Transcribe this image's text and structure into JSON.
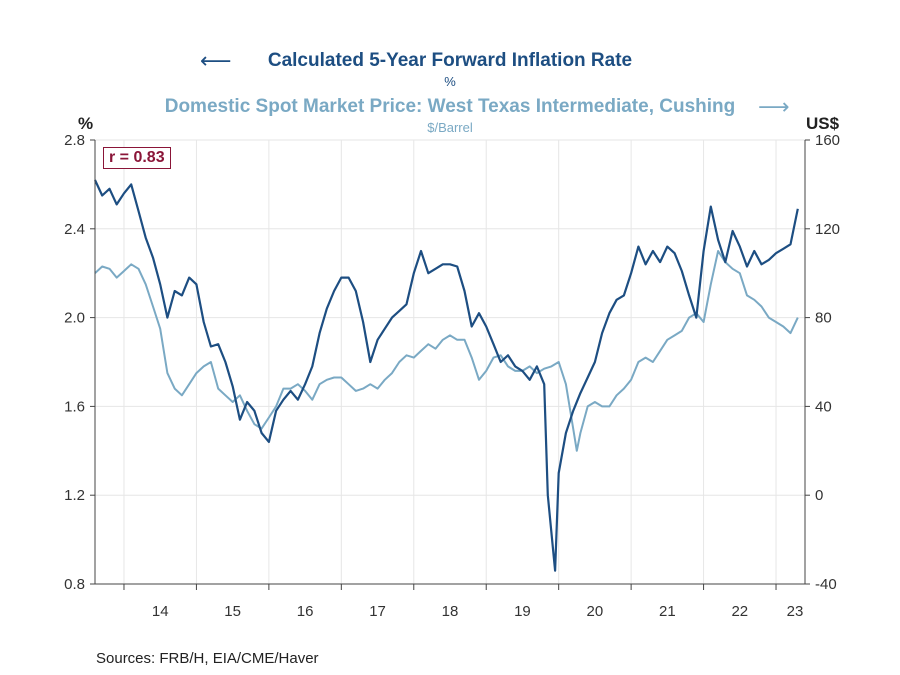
{
  "titles": {
    "series1_title": "Calculated 5-Year Forward Inflation Rate",
    "series1_unit": "%",
    "series2_title": "Domestic Spot Market Price: West Texas Intermediate, Cushing",
    "series2_unit": "$/Barrel",
    "arrow_left": "⟵",
    "arrow_right": "⟶"
  },
  "axis_labels": {
    "left": "%",
    "right": "US$"
  },
  "annotation": "r = 0.83",
  "sources": "Sources:  FRB/H, EIA/CME/Haver",
  "colors": {
    "series1": "#1d4e82",
    "series2": "#7aa9c4",
    "annotation": "#8a1538",
    "grid": "#e6e6e6"
  },
  "chart_data": {
    "type": "line",
    "x_tick_labels": [
      "14",
      "15",
      "16",
      "17",
      "18",
      "19",
      "20",
      "21",
      "22",
      "23"
    ],
    "x_ticks": [
      2014.0,
      2015.0,
      2016.0,
      2017.0,
      2018.0,
      2019.0,
      2020.0,
      2021.0,
      2022.0,
      2023.0
    ],
    "xlim": [
      2013.6,
      2023.4
    ],
    "y_left": {
      "label": "%",
      "lim": [
        0.8,
        2.8
      ],
      "ticks": [
        0.8,
        1.2,
        1.6,
        2.0,
        2.4,
        2.8
      ],
      "tick_labels": [
        "0.8",
        "1.2",
        "1.6",
        "2.0",
        "2.4",
        "2.8"
      ]
    },
    "y_right": {
      "label": "US$",
      "lim": [
        -40,
        160
      ],
      "ticks": [
        -40,
        0,
        40,
        80,
        120,
        160
      ],
      "tick_labels": [
        "-40",
        "0",
        "40",
        "80",
        "120",
        "160"
      ]
    },
    "series": [
      {
        "name": "Calculated 5-Year Forward Inflation Rate",
        "unit": "%",
        "axis": "left",
        "x": [
          2013.6,
          2013.7,
          2013.8,
          2013.9,
          2014.0,
          2014.1,
          2014.2,
          2014.3,
          2014.4,
          2014.5,
          2014.6,
          2014.7,
          2014.8,
          2014.9,
          2015.0,
          2015.1,
          2015.2,
          2015.3,
          2015.4,
          2015.5,
          2015.6,
          2015.7,
          2015.8,
          2015.9,
          2016.0,
          2016.1,
          2016.2,
          2016.3,
          2016.4,
          2016.5,
          2016.6,
          2016.7,
          2016.8,
          2016.9,
          2017.0,
          2017.1,
          2017.2,
          2017.3,
          2017.4,
          2017.5,
          2017.6,
          2017.7,
          2017.8,
          2017.9,
          2018.0,
          2018.1,
          2018.2,
          2018.3,
          2018.4,
          2018.5,
          2018.6,
          2018.7,
          2018.8,
          2018.9,
          2019.0,
          2019.1,
          2019.2,
          2019.3,
          2019.4,
          2019.5,
          2019.6,
          2019.7,
          2019.8,
          2019.85,
          2019.95,
          2020.0,
          2020.1,
          2020.2,
          2020.3,
          2020.4,
          2020.5,
          2020.6,
          2020.7,
          2020.8,
          2020.9,
          2021.0,
          2021.1,
          2021.2,
          2021.3,
          2021.4,
          2021.5,
          2021.6,
          2021.7,
          2021.8,
          2021.9,
          2022.0,
          2022.1,
          2022.2,
          2022.3,
          2022.4,
          2022.5,
          2022.6,
          2022.7,
          2022.8,
          2022.9,
          2023.0,
          2023.1,
          2023.2,
          2023.3
        ],
        "y": [
          2.62,
          2.55,
          2.58,
          2.51,
          2.56,
          2.6,
          2.48,
          2.36,
          2.27,
          2.15,
          2.0,
          2.12,
          2.1,
          2.18,
          2.15,
          1.98,
          1.87,
          1.88,
          1.8,
          1.69,
          1.54,
          1.62,
          1.58,
          1.48,
          1.44,
          1.58,
          1.63,
          1.67,
          1.63,
          1.7,
          1.78,
          1.93,
          2.04,
          2.12,
          2.18,
          2.18,
          2.12,
          1.98,
          1.8,
          1.9,
          1.95,
          2.0,
          2.03,
          2.06,
          2.2,
          2.3,
          2.2,
          2.22,
          2.24,
          2.24,
          2.23,
          2.12,
          1.96,
          2.02,
          1.96,
          1.88,
          1.8,
          1.83,
          1.78,
          1.76,
          1.72,
          1.78,
          1.7,
          1.2,
          0.86,
          1.3,
          1.48,
          1.58,
          1.66,
          1.73,
          1.8,
          1.93,
          2.02,
          2.08,
          2.1,
          2.2,
          2.32,
          2.24,
          2.3,
          2.25,
          2.32,
          2.29,
          2.21,
          2.1,
          2.0,
          2.3,
          2.5,
          2.35,
          2.25,
          2.39,
          2.32,
          2.23,
          2.3,
          2.24,
          2.26,
          2.29,
          2.31,
          2.33,
          2.49
        ]
      },
      {
        "name": "Domestic Spot Market Price: West Texas Intermediate, Cushing",
        "unit": "$/Barrel",
        "axis": "right",
        "x": [
          2013.6,
          2013.7,
          2013.8,
          2013.9,
          2014.0,
          2014.1,
          2014.2,
          2014.3,
          2014.4,
          2014.5,
          2014.6,
          2014.7,
          2014.8,
          2014.9,
          2015.0,
          2015.1,
          2015.2,
          2015.3,
          2015.4,
          2015.5,
          2015.6,
          2015.7,
          2015.8,
          2015.9,
          2016.0,
          2016.1,
          2016.2,
          2016.3,
          2016.4,
          2016.5,
          2016.6,
          2016.7,
          2016.8,
          2016.9,
          2017.0,
          2017.1,
          2017.2,
          2017.3,
          2017.4,
          2017.5,
          2017.6,
          2017.7,
          2017.8,
          2017.9,
          2018.0,
          2018.1,
          2018.2,
          2018.3,
          2018.4,
          2018.5,
          2018.6,
          2018.7,
          2018.8,
          2018.9,
          2019.0,
          2019.1,
          2019.2,
          2019.3,
          2019.4,
          2019.5,
          2019.6,
          2019.7,
          2019.8,
          2019.9,
          2020.0,
          2020.1,
          2020.2,
          2020.25,
          2020.3,
          2020.4,
          2020.5,
          2020.6,
          2020.7,
          2020.8,
          2020.9,
          2021.0,
          2021.1,
          2021.2,
          2021.3,
          2021.4,
          2021.5,
          2021.6,
          2021.7,
          2021.8,
          2021.9,
          2022.0,
          2022.1,
          2022.2,
          2022.3,
          2022.4,
          2022.5,
          2022.6,
          2022.7,
          2022.8,
          2022.9,
          2023.0,
          2023.1,
          2023.2,
          2023.3
        ],
        "y": [
          100,
          103,
          102,
          98,
          101,
          104,
          102,
          95,
          85,
          75,
          55,
          48,
          45,
          50,
          55,
          58,
          60,
          48,
          45,
          42,
          45,
          38,
          32,
          30,
          35,
          40,
          48,
          48,
          50,
          47,
          43,
          50,
          52,
          53,
          53,
          50,
          47,
          48,
          50,
          48,
          52,
          55,
          60,
          63,
          62,
          65,
          68,
          66,
          70,
          72,
          70,
          70,
          62,
          52,
          56,
          62,
          63,
          58,
          56,
          56,
          58,
          55,
          57,
          58,
          60,
          50,
          30,
          20,
          28,
          40,
          42,
          40,
          40,
          45,
          48,
          52,
          60,
          62,
          60,
          65,
          70,
          72,
          74,
          80,
          82,
          78,
          95,
          110,
          105,
          102,
          100,
          90,
          88,
          85,
          80,
          78,
          76,
          73,
          80
        ]
      }
    ]
  }
}
